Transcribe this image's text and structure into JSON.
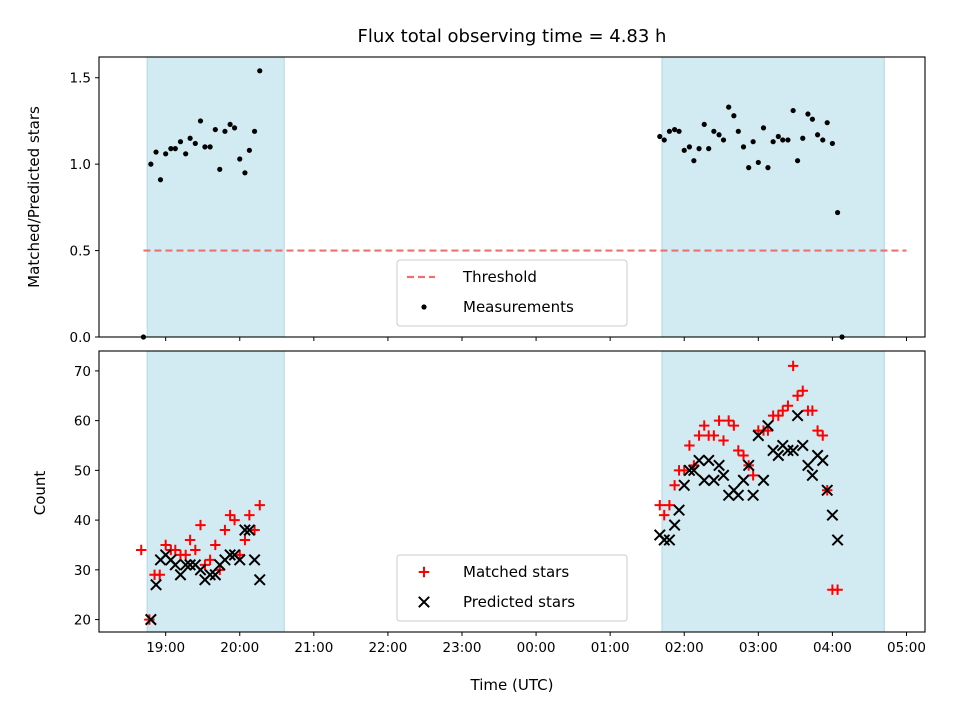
{
  "chart_data": {
    "title": "Flux total observing time = 4.83 h",
    "xlabel": "Time (UTC)",
    "x_unit": "hours",
    "x_ticks": [
      {
        "v": 19,
        "label": "19:00"
      },
      {
        "v": 20,
        "label": "20:00"
      },
      {
        "v": 21,
        "label": "21:00"
      },
      {
        "v": 22,
        "label": "22:00"
      },
      {
        "v": 23,
        "label": "23:00"
      },
      {
        "v": 24,
        "label": "00:00"
      },
      {
        "v": 25,
        "label": "01:00"
      },
      {
        "v": 26,
        "label": "02:00"
      },
      {
        "v": 27,
        "label": "03:00"
      },
      {
        "v": 28,
        "label": "04:00"
      },
      {
        "v": 29,
        "label": "05:00"
      }
    ],
    "xlim": [
      18.1,
      29.25
    ],
    "shaded_intervals": [
      [
        18.75,
        20.6
      ],
      [
        25.7,
        28.7
      ]
    ],
    "shade_color": "#add8e6",
    "panels": [
      {
        "type": "scatter",
        "ylabel": "Matched/Predicted stars",
        "ylim": [
          0,
          1.62
        ],
        "yticks": [
          {
            "v": 0,
            "label": "0.0"
          },
          {
            "v": 0.5,
            "label": "0.5"
          },
          {
            "v": 1.0,
            "label": "1.0"
          },
          {
            "v": 1.5,
            "label": "1.5"
          }
        ],
        "threshold": {
          "name": "Threshold",
          "value": 0.5,
          "x": [
            18.7,
            29.0
          ],
          "color": "#f07070"
        },
        "series": [
          {
            "name": "Measurements",
            "marker": "dot",
            "color": "#000000",
            "points": [
              [
                18.7,
                0.0
              ],
              [
                18.8,
                1.0
              ],
              [
                18.87,
                1.07
              ],
              [
                18.93,
                0.91
              ],
              [
                19.0,
                1.06
              ],
              [
                19.07,
                1.09
              ],
              [
                19.13,
                1.09
              ],
              [
                19.2,
                1.13
              ],
              [
                19.27,
                1.06
              ],
              [
                19.33,
                1.15
              ],
              [
                19.4,
                1.12
              ],
              [
                19.47,
                1.25
              ],
              [
                19.53,
                1.1
              ],
              [
                19.6,
                1.1
              ],
              [
                19.67,
                1.2
              ],
              [
                19.73,
                0.97
              ],
              [
                19.8,
                1.19
              ],
              [
                19.87,
                1.23
              ],
              [
                19.93,
                1.21
              ],
              [
                20.0,
                1.03
              ],
              [
                20.07,
                0.95
              ],
              [
                20.13,
                1.08
              ],
              [
                20.2,
                1.19
              ],
              [
                20.27,
                1.54
              ],
              [
                25.67,
                1.16
              ],
              [
                25.73,
                1.14
              ],
              [
                25.8,
                1.19
              ],
              [
                25.87,
                1.2
              ],
              [
                25.93,
                1.19
              ],
              [
                26.0,
                1.08
              ],
              [
                26.07,
                1.1
              ],
              [
                26.13,
                1.02
              ],
              [
                26.2,
                1.09
              ],
              [
                26.27,
                1.23
              ],
              [
                26.33,
                1.09
              ],
              [
                26.4,
                1.19
              ],
              [
                26.47,
                1.17
              ],
              [
                26.53,
                1.14
              ],
              [
                26.6,
                1.33
              ],
              [
                26.67,
                1.28
              ],
              [
                26.73,
                1.19
              ],
              [
                26.8,
                1.1
              ],
              [
                26.87,
                0.98
              ],
              [
                26.93,
                1.13
              ],
              [
                27.0,
                1.01
              ],
              [
                27.07,
                1.21
              ],
              [
                27.13,
                0.98
              ],
              [
                27.2,
                1.13
              ],
              [
                27.27,
                1.16
              ],
              [
                27.33,
                1.14
              ],
              [
                27.4,
                1.14
              ],
              [
                27.47,
                1.31
              ],
              [
                27.53,
                1.02
              ],
              [
                27.6,
                1.15
              ],
              [
                27.67,
                1.29
              ],
              [
                27.73,
                1.26
              ],
              [
                27.8,
                1.17
              ],
              [
                27.87,
                1.14
              ],
              [
                27.93,
                1.24
              ],
              [
                28.0,
                1.12
              ],
              [
                28.07,
                0.72
              ],
              [
                28.13,
                0.0
              ]
            ]
          }
        ],
        "legend": [
          "Threshold",
          "Measurements"
        ]
      },
      {
        "type": "scatter",
        "ylabel": "Count",
        "ylim": [
          17.5,
          74
        ],
        "yticks": [
          {
            "v": 20,
            "label": "20"
          },
          {
            "v": 30,
            "label": "30"
          },
          {
            "v": 40,
            "label": "40"
          },
          {
            "v": 50,
            "label": "50"
          },
          {
            "v": 60,
            "label": "60"
          },
          {
            "v": 70,
            "label": "70"
          }
        ],
        "series": [
          {
            "name": "Matched stars",
            "marker": "plus",
            "color": "#ff0000",
            "points": [
              [
                18.67,
                34
              ],
              [
                18.78,
                20
              ],
              [
                18.85,
                29
              ],
              [
                18.92,
                29
              ],
              [
                19.0,
                35
              ],
              [
                19.07,
                34
              ],
              [
                19.13,
                34
              ],
              [
                19.2,
                33
              ],
              [
                19.27,
                33
              ],
              [
                19.33,
                36
              ],
              [
                19.4,
                34
              ],
              [
                19.47,
                39
              ],
              [
                19.53,
                31
              ],
              [
                19.6,
                32
              ],
              [
                19.67,
                35
              ],
              [
                19.73,
                30
              ],
              [
                19.8,
                38
              ],
              [
                19.87,
                41
              ],
              [
                19.93,
                40
              ],
              [
                20.0,
                33
              ],
              [
                20.07,
                36
              ],
              [
                20.13,
                41
              ],
              [
                20.2,
                38
              ],
              [
                20.27,
                43
              ],
              [
                25.67,
                43
              ],
              [
                25.73,
                41
              ],
              [
                25.8,
                43
              ],
              [
                25.87,
                47
              ],
              [
                25.93,
                50
              ],
              [
                26.0,
                50
              ],
              [
                26.07,
                55
              ],
              [
                26.13,
                51
              ],
              [
                26.2,
                57
              ],
              [
                26.27,
                59
              ],
              [
                26.33,
                57
              ],
              [
                26.4,
                57
              ],
              [
                26.47,
                60
              ],
              [
                26.53,
                56
              ],
              [
                26.6,
                60
              ],
              [
                26.67,
                59
              ],
              [
                26.73,
                54
              ],
              [
                26.8,
                53
              ],
              [
                26.87,
                51
              ],
              [
                26.93,
                49
              ],
              [
                27.0,
                58
              ],
              [
                27.07,
                58
              ],
              [
                27.13,
                58
              ],
              [
                27.2,
                61
              ],
              [
                27.27,
                61
              ],
              [
                27.33,
                62
              ],
              [
                27.4,
                63
              ],
              [
                27.47,
                71
              ],
              [
                27.53,
                65
              ],
              [
                27.6,
                66
              ],
              [
                27.67,
                62
              ],
              [
                27.73,
                62
              ],
              [
                27.8,
                58
              ],
              [
                27.87,
                57
              ],
              [
                27.93,
                46
              ],
              [
                28.0,
                26
              ],
              [
                28.07,
                26
              ]
            ]
          },
          {
            "name": "Predicted stars",
            "marker": "x",
            "color": "#000000",
            "points": [
              [
                18.8,
                20
              ],
              [
                18.87,
                27
              ],
              [
                18.93,
                32
              ],
              [
                19.0,
                33
              ],
              [
                19.07,
                32
              ],
              [
                19.13,
                31
              ],
              [
                19.2,
                29
              ],
              [
                19.27,
                31
              ],
              [
                19.33,
                31
              ],
              [
                19.4,
                31
              ],
              [
                19.47,
                30
              ],
              [
                19.53,
                28
              ],
              [
                19.6,
                29
              ],
              [
                19.67,
                29
              ],
              [
                19.73,
                31
              ],
              [
                19.8,
                32
              ],
              [
                19.87,
                33
              ],
              [
                19.93,
                33
              ],
              [
                20.0,
                32
              ],
              [
                20.07,
                38
              ],
              [
                20.13,
                38
              ],
              [
                20.2,
                32
              ],
              [
                20.27,
                28
              ],
              [
                25.67,
                37
              ],
              [
                25.73,
                36
              ],
              [
                25.8,
                36
              ],
              [
                25.87,
                39
              ],
              [
                25.93,
                42
              ],
              [
                26.0,
                47
              ],
              [
                26.07,
                50
              ],
              [
                26.13,
                50
              ],
              [
                26.2,
                52
              ],
              [
                26.27,
                48
              ],
              [
                26.33,
                52
              ],
              [
                26.4,
                48
              ],
              [
                26.47,
                51
              ],
              [
                26.53,
                49
              ],
              [
                26.6,
                45
              ],
              [
                26.67,
                46
              ],
              [
                26.73,
                45
              ],
              [
                26.8,
                48
              ],
              [
                26.87,
                51
              ],
              [
                26.93,
                45
              ],
              [
                27.0,
                57
              ],
              [
                27.07,
                48
              ],
              [
                27.13,
                59
              ],
              [
                27.2,
                54
              ],
              [
                27.27,
                53
              ],
              [
                27.33,
                55
              ],
              [
                27.4,
                54
              ],
              [
                27.47,
                54
              ],
              [
                27.53,
                61
              ],
              [
                27.6,
                55
              ],
              [
                27.67,
                51
              ],
              [
                27.73,
                49
              ],
              [
                27.8,
                53
              ],
              [
                27.87,
                52
              ],
              [
                27.93,
                46
              ],
              [
                28.0,
                41
              ],
              [
                28.07,
                36
              ]
            ]
          }
        ],
        "legend": [
          "Matched stars",
          "Predicted stars"
        ]
      }
    ]
  }
}
